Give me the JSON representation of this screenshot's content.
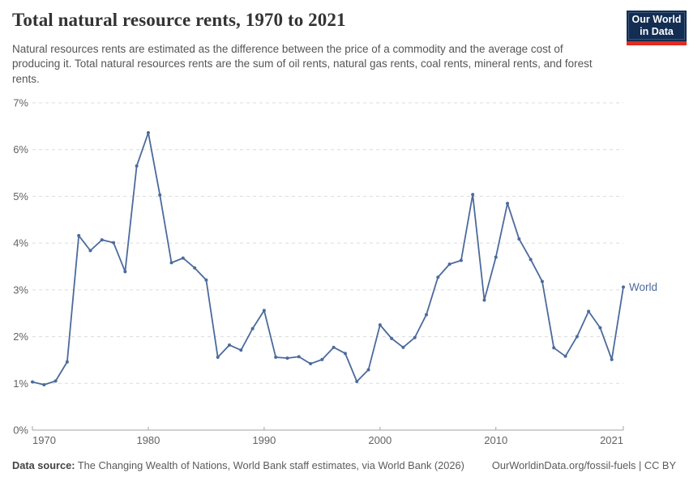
{
  "header": {
    "title": "Total natural resource rents, 1970 to 2021",
    "subtitle": "Natural resources rents are estimated as the difference between the price of a commodity and the average cost of producing it. Total natural resources rents are the sum of oil rents, natural gas rents, coal rents, mineral rents, and forest rents.",
    "logo": {
      "line1": "Our World",
      "line2": "in Data",
      "bg_color": "#132e52",
      "accent_color": "#e02c21"
    }
  },
  "chart_data": {
    "type": "line",
    "title": "Total natural resource rents, 1970 to 2021",
    "xlabel": "",
    "ylabel": "",
    "ylim": [
      0,
      7
    ],
    "grid": "horizontal-dashed",
    "legend_position": "end-of-line",
    "x": [
      1970,
      1971,
      1972,
      1973,
      1974,
      1975,
      1976,
      1977,
      1978,
      1979,
      1980,
      1981,
      1982,
      1983,
      1984,
      1985,
      1986,
      1987,
      1988,
      1989,
      1990,
      1991,
      1992,
      1993,
      1994,
      1995,
      1996,
      1997,
      1998,
      1999,
      2000,
      2001,
      2002,
      2003,
      2004,
      2005,
      2006,
      2007,
      2008,
      2009,
      2010,
      2011,
      2012,
      2013,
      2014,
      2015,
      2016,
      2017,
      2018,
      2019,
      2020,
      2021
    ],
    "series": [
      {
        "name": "World",
        "color": "#4c6a9c",
        "unit": "%",
        "values": [
          1.03,
          0.97,
          1.05,
          1.46,
          4.16,
          3.84,
          4.07,
          4.01,
          3.39,
          5.65,
          6.36,
          5.03,
          3.58,
          3.68,
          3.47,
          3.21,
          1.56,
          1.82,
          1.71,
          2.17,
          2.56,
          1.56,
          1.54,
          1.57,
          1.42,
          1.51,
          1.77,
          1.64,
          1.04,
          1.29,
          2.25,
          1.96,
          1.77,
          1.98,
          2.47,
          3.27,
          3.55,
          3.63,
          5.04,
          2.78,
          3.7,
          4.85,
          4.09,
          3.65,
          3.18,
          1.76,
          1.58,
          2.0,
          2.54,
          2.19,
          1.51,
          3.06
        ]
      }
    ],
    "ytick_values": [
      0,
      1,
      2,
      3,
      4,
      5,
      6,
      7
    ],
    "yticks": [
      "0%",
      "1%",
      "2%",
      "3%",
      "4%",
      "5%",
      "6%",
      "7%"
    ],
    "xticks": [
      1970,
      1980,
      1990,
      2000,
      2010,
      2021
    ]
  },
  "footer": {
    "data_source_label": "Data source:",
    "data_source_text": " The Changing Wealth of Nations, World Bank staff estimates, via World Bank (2026)",
    "attribution": "OurWorldinData.org/fossil-fuels | CC BY"
  }
}
